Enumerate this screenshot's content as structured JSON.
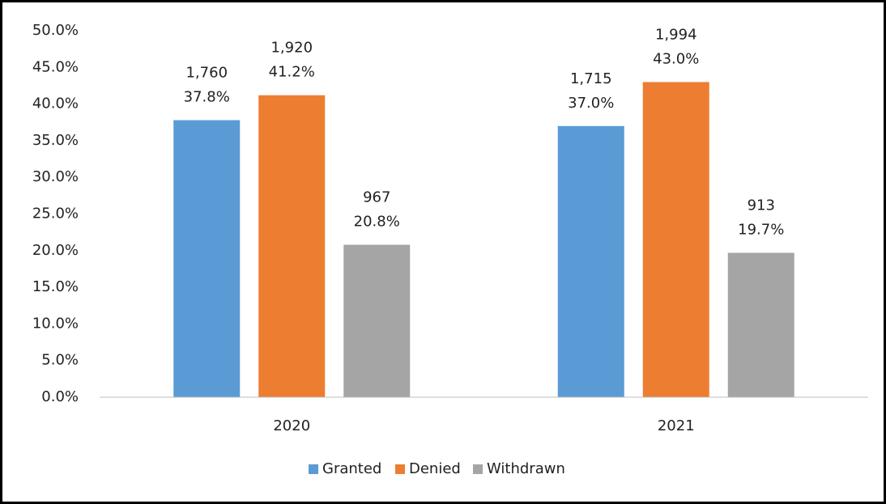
{
  "chart_data": {
    "type": "bar",
    "categories": [
      "2020",
      "2021"
    ],
    "series": [
      {
        "name": "Granted",
        "color": "#5b9bd5",
        "values": [
          37.8,
          37.0
        ],
        "value_labels": [
          "37.8%",
          "37.0%"
        ],
        "count_labels": [
          "1,760",
          "1,715"
        ]
      },
      {
        "name": "Denied",
        "color": "#ed7d31",
        "values": [
          41.2,
          43.0
        ],
        "value_labels": [
          "41.2%",
          "43.0%"
        ],
        "count_labels": [
          "1,920",
          "1,994"
        ]
      },
      {
        "name": "Withdrawn",
        "color": "#a5a5a5",
        "values": [
          20.8,
          19.7
        ],
        "value_labels": [
          "20.8%",
          "19.7%"
        ],
        "count_labels": [
          "967",
          "913"
        ]
      }
    ],
    "ylim": [
      0,
      50
    ],
    "yticks": [
      {
        "value": 0,
        "label": "0.0%"
      },
      {
        "value": 5,
        "label": "5.0%"
      },
      {
        "value": 10,
        "label": "10.0%"
      },
      {
        "value": 15,
        "label": "15.0%"
      },
      {
        "value": 20,
        "label": "20.0%"
      },
      {
        "value": 25,
        "label": "25.0%"
      },
      {
        "value": 30,
        "label": "30.0%"
      },
      {
        "value": 35,
        "label": "35.0%"
      },
      {
        "value": 40,
        "label": "40.0%"
      },
      {
        "value": 45,
        "label": "45.0%"
      },
      {
        "value": 50,
        "label": "50.0%"
      }
    ],
    "grid": false,
    "legend": "bottom"
  }
}
